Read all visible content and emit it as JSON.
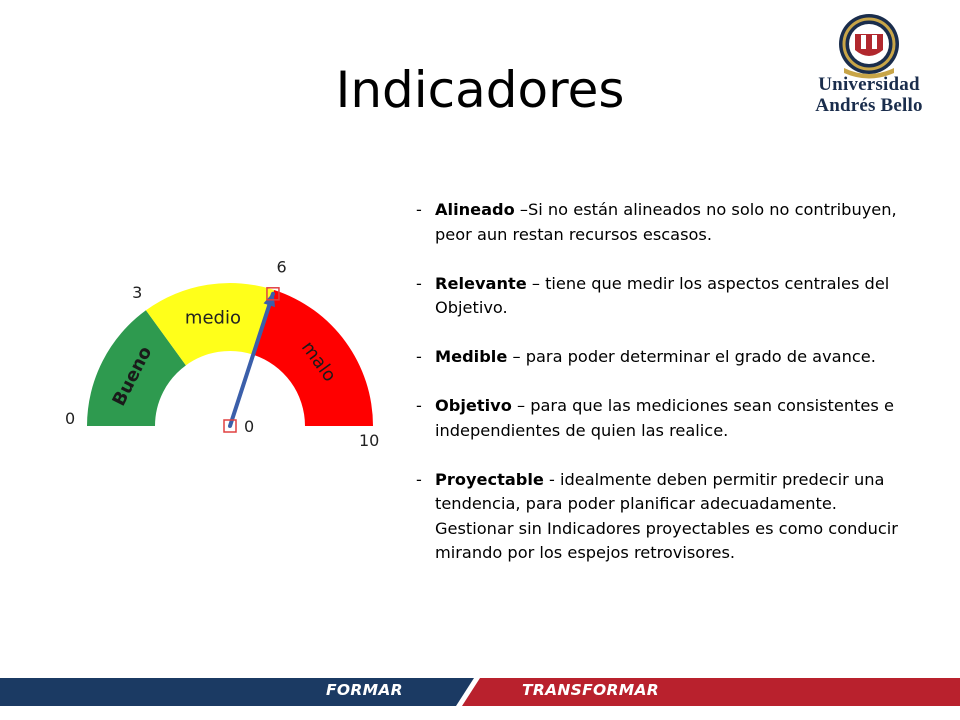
{
  "slide": {
    "title": "Indicadores"
  },
  "logo": {
    "line1": "Universidad",
    "line2": "Andrés Bello",
    "colors": {
      "navy": "#1a2d4c",
      "gold": "#c8a548",
      "red": "#b1282e"
    }
  },
  "gauge": {
    "segments": [
      {
        "label": "Bueno",
        "from": 0,
        "to": 3,
        "color": "#2e9a4f"
      },
      {
        "label": "medio",
        "from": 3,
        "to": 6,
        "color": "#ffff1a"
      },
      {
        "label": "malo",
        "from": 6,
        "to": 10,
        "color": "#ff0000"
      }
    ],
    "labels": {
      "min": "0",
      "mid3": "3",
      "mid6": "6",
      "max": "10",
      "center": "0"
    },
    "needle_value": 6,
    "needle_color": "#3b5faa"
  },
  "criteria": [
    {
      "term": "Alineado",
      "text": " –Si no están alineados no solo no contribuyen, peor aun restan recursos escasos."
    },
    {
      "term": "Relevante",
      "text": " – tiene que medir los aspectos centrales del Objetivo."
    },
    {
      "term": "Medible",
      "text": " – para poder determinar el grado de avance."
    },
    {
      "term": "Objetivo",
      "text": " – para que las mediciones sean consistentes e independientes de quien las realice."
    },
    {
      "term": "Proyectable",
      "text": " -  idealmente deben permitir predecir una tendencia, para  poder planificar adecuadamente. Gestionar sin Indicadores proyectables   es como conducir mirando por los espejos retrovisores."
    }
  ],
  "footer": {
    "left_label": "FORMAR",
    "right_label": "TRANSFORMAR",
    "colors": {
      "left": "#1b3a63",
      "right": "#b9212d"
    }
  }
}
